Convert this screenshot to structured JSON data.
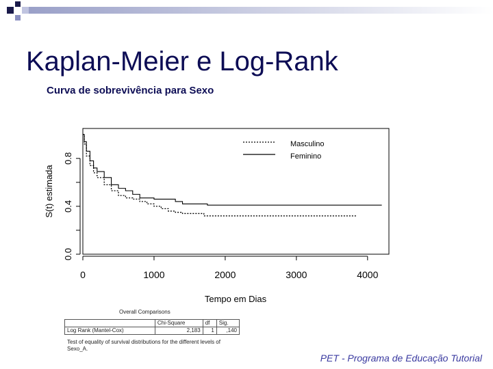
{
  "slide": {
    "title": "Kaplan-Meier e Log-Rank",
    "subtitle": "Curva de sobrevivência para Sexo",
    "footer": "PET - Programa de Educação Tutorial"
  },
  "chart_data": {
    "type": "line",
    "title": "",
    "xlabel": "Tempo em Dias",
    "ylabel": "S(t) estimada",
    "xlim": [
      0,
      4300
    ],
    "ylim": [
      0,
      1.05
    ],
    "xticks": [
      0,
      1000,
      2000,
      3000,
      4000
    ],
    "yticks": [
      0.0,
      0.4,
      0.8
    ],
    "ytick_labels": [
      "0.0",
      "0.4",
      "0.8"
    ],
    "grid": false,
    "legend_position": "top-right",
    "series": [
      {
        "name": "Masculino",
        "style": "dotted",
        "x": [
          0,
          20,
          50,
          100,
          150,
          200,
          300,
          400,
          500,
          600,
          700,
          800,
          900,
          1000,
          1100,
          1200,
          1300,
          1400,
          1700,
          3840
        ],
        "y": [
          1.0,
          0.92,
          0.82,
          0.74,
          0.68,
          0.64,
          0.58,
          0.53,
          0.49,
          0.47,
          0.46,
          0.44,
          0.42,
          0.4,
          0.38,
          0.36,
          0.35,
          0.34,
          0.32,
          0.32
        ]
      },
      {
        "name": "Feminino",
        "style": "solid",
        "x": [
          0,
          20,
          50,
          100,
          150,
          200,
          300,
          400,
          500,
          600,
          700,
          800,
          1000,
          1300,
          1400,
          1750,
          4200
        ],
        "y": [
          1.0,
          0.94,
          0.86,
          0.78,
          0.72,
          0.69,
          0.64,
          0.58,
          0.55,
          0.53,
          0.5,
          0.47,
          0.46,
          0.44,
          0.42,
          0.41,
          0.41
        ]
      }
    ]
  },
  "stats_table": {
    "caption": "Overall Comparisons",
    "headers": [
      "",
      "Chi-Square",
      "df",
      "Sig."
    ],
    "row": [
      "Log Rank (Mantel-Cox)",
      "2,183",
      "1",
      ",140"
    ],
    "note": "Test of equality of survival distributions for the different levels of Sexo_A."
  }
}
